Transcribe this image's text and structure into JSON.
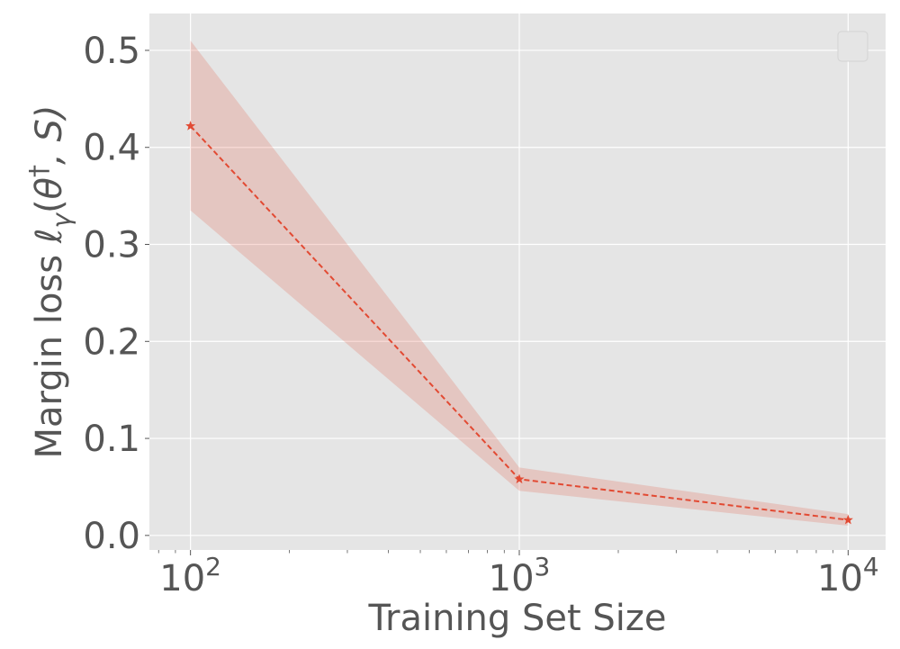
{
  "chart_data": {
    "type": "line",
    "xscale": "log",
    "xlim": [
      75,
      13000
    ],
    "ylim": [
      -0.015,
      0.538
    ],
    "xlabel": "Training Set Size",
    "ylabel_parts": {
      "prefix": "Margin loss ",
      "ell": "ℓ",
      "gamma": "γ",
      "open": "(",
      "theta": "θ",
      "dagger": "†",
      "rest": ", S)"
    },
    "x_ticks": [
      {
        "value": 100,
        "base": "10",
        "exp": "2"
      },
      {
        "value": 1000,
        "base": "10",
        "exp": "3"
      },
      {
        "value": 10000,
        "base": "10",
        "exp": "4"
      }
    ],
    "y_ticks": [
      {
        "value": 0.0,
        "label": "0.0"
      },
      {
        "value": 0.1,
        "label": "0.1"
      },
      {
        "value": 0.2,
        "label": "0.2"
      },
      {
        "value": 0.3,
        "label": "0.3"
      },
      {
        "value": 0.4,
        "label": "0.4"
      },
      {
        "value": 0.5,
        "label": "0.5"
      }
    ],
    "grid": true,
    "legend": {
      "placement": "top-right",
      "entries": []
    },
    "series": [
      {
        "x": [
          100,
          1000,
          10000
        ],
        "y": [
          0.422,
          0.058,
          0.016
        ],
        "upper": [
          0.51,
          0.07,
          0.022
        ],
        "lower": [
          0.335,
          0.046,
          0.01
        ],
        "color": "#E24A33",
        "band_color": "#E24A33",
        "band_opacity": 0.2,
        "linestyle": "dashed",
        "marker": "star"
      }
    ],
    "colors": {
      "plot_bg": "#E5E5E5",
      "grid": "#FFFFFF",
      "text": "#555555"
    }
  }
}
